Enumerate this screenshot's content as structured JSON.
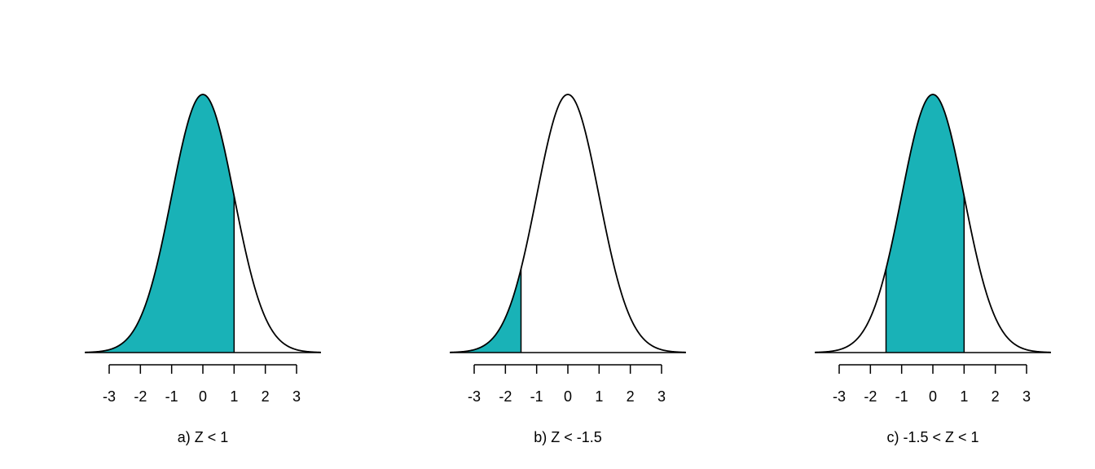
{
  "chart_data": [
    {
      "type": "normal",
      "caption": "a) Z < 1",
      "xlim": [
        -3.78,
        3.78
      ],
      "xticks": [
        -3,
        -2,
        -1,
        0,
        1,
        2,
        3
      ],
      "shade": {
        "from": null,
        "to": 1
      },
      "color": "#19b2b7"
    },
    {
      "type": "normal",
      "caption": "b) Z < -1.5",
      "xlim": [
        -3.78,
        3.78
      ],
      "xticks": [
        -3,
        -2,
        -1,
        0,
        1,
        2,
        3
      ],
      "shade": {
        "from": null,
        "to": -1.5
      },
      "color": "#19b2b7"
    },
    {
      "type": "normal",
      "caption": "c) -1.5 < Z < 1",
      "xlim": [
        -3.78,
        3.78
      ],
      "xticks": [
        -3,
        -2,
        -1,
        0,
        1,
        2,
        3
      ],
      "shade": {
        "from": -1.5,
        "to": 1
      },
      "color": "#19b2b7"
    }
  ]
}
